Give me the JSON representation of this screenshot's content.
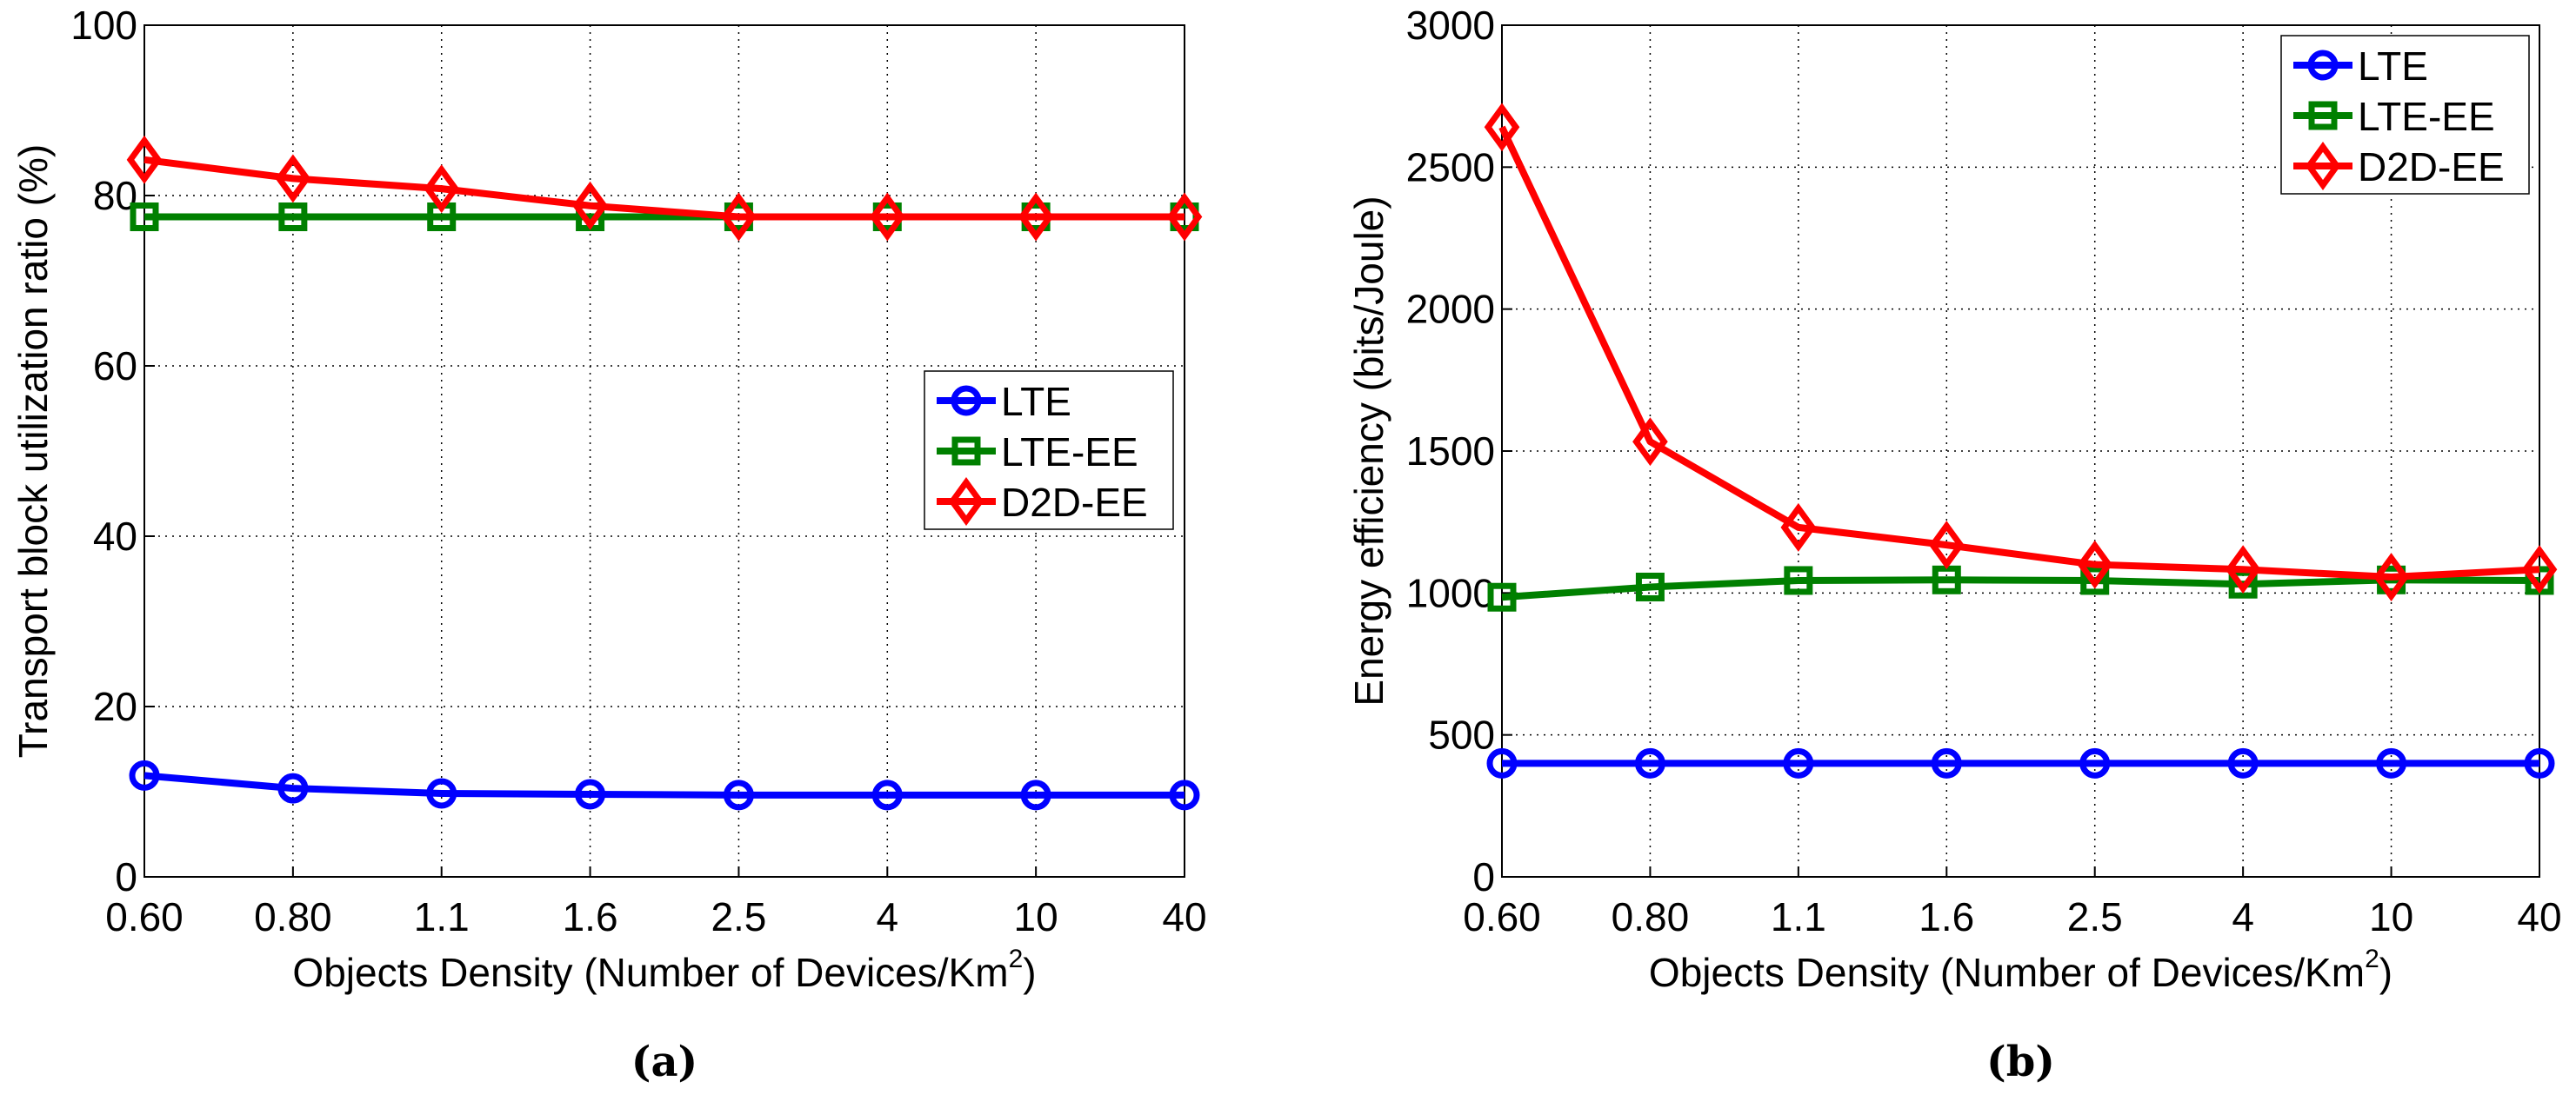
{
  "chart_data": [
    {
      "type": "line",
      "caption": "(a)",
      "title": "",
      "xlabel": "Objects Density (Number of Devices/Km",
      "xlabel_sup": "2",
      "xlabel_end": ")",
      "ylabel": "Transport block utilization ratio (%)",
      "categories": [
        "0.60",
        "0.80",
        "1.1",
        "1.6",
        "2.5",
        "4",
        "10",
        "40"
      ],
      "ylim": [
        0,
        100
      ],
      "yticks": [
        0,
        20,
        40,
        60,
        80,
        100
      ],
      "grid": true,
      "legend_position": "right",
      "series": [
        {
          "name": "LTE",
          "color": "#0000ff",
          "marker": "circle",
          "values": [
            11.9,
            10.4,
            9.8,
            9.7,
            9.6,
            9.6,
            9.6,
            9.6
          ]
        },
        {
          "name": "LTE-EE",
          "color": "#008000",
          "marker": "square",
          "values": [
            77.5,
            77.5,
            77.5,
            77.5,
            77.5,
            77.5,
            77.5,
            77.5
          ]
        },
        {
          "name": "D2D-EE",
          "color": "#ff0000",
          "marker": "diamond",
          "values": [
            84.2,
            82.0,
            80.8,
            78.8,
            77.5,
            77.5,
            77.5,
            77.5
          ]
        }
      ]
    },
    {
      "type": "line",
      "caption": "(b)",
      "title": "",
      "xlabel": "Objects Density (Number of Devices/Km",
      "xlabel_sup": "2",
      "xlabel_end": ")",
      "ylabel": "Energy efficiency (bits/Joule)",
      "categories": [
        "0.60",
        "0.80",
        "1.1",
        "1.6",
        "2.5",
        "4",
        "10",
        "40"
      ],
      "ylim": [
        0,
        3000
      ],
      "yticks": [
        0,
        500,
        1000,
        1500,
        2000,
        2500,
        3000
      ],
      "grid": true,
      "legend_position": "top-right",
      "series": [
        {
          "name": "LTE",
          "color": "#0000ff",
          "marker": "circle",
          "values": [
            400,
            400,
            400,
            400,
            400,
            400,
            400,
            400
          ]
        },
        {
          "name": "LTE-EE",
          "color": "#008000",
          "marker": "square",
          "values": [
            985,
            1021,
            1044,
            1046,
            1044,
            1031,
            1046,
            1044
          ]
        },
        {
          "name": "D2D-EE",
          "color": "#ff0000",
          "marker": "diamond",
          "values": [
            2641,
            1533,
            1231,
            1169,
            1100,
            1083,
            1056,
            1083
          ]
        }
      ]
    }
  ]
}
